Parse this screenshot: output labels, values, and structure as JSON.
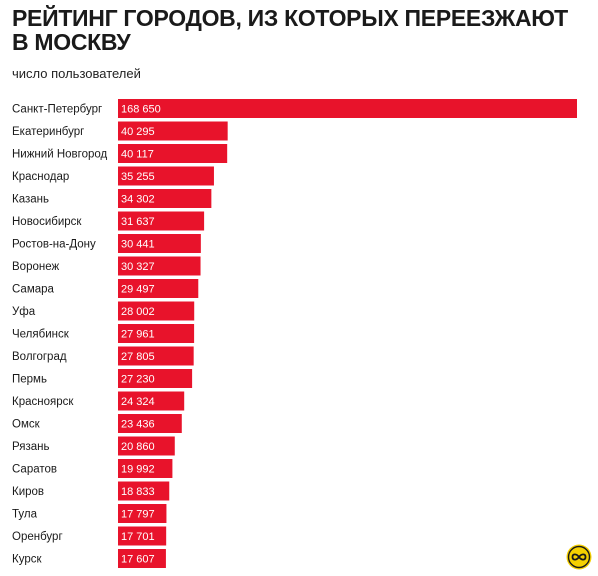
{
  "header": {
    "title": "РЕЙТИНГ ГОРОДОВ, ИЗ КОТОРЫХ ПЕРЕЕЗЖАЮТ В МОСКВУ",
    "subtitle": "число пользователей"
  },
  "colors": {
    "bar": "#e8132b",
    "text": "#1a1a1a",
    "logo_bg": "#f5d000"
  },
  "logo": {
    "icon": "infinity-logo-icon"
  },
  "chart_data": {
    "type": "bar",
    "orientation": "horizontal",
    "title": "РЕЙТИНГ ГОРОДОВ, ИЗ КОТОРЫХ ПЕРЕЕЗЖАЮТ В МОСКВУ",
    "subtitle": "число пользователей",
    "xlim": [
      0,
      168650
    ],
    "grid": false,
    "legend": "none",
    "categories": [
      "Санкт-Петербург",
      "Екатеринбург",
      "Нижний Новгород",
      "Краснодар",
      "Казань",
      "Новосибирск",
      "Ростов-на-Дону",
      "Воронеж",
      "Самара",
      "Уфа",
      "Челябинск",
      "Волгоград",
      "Пермь",
      "Красноярск",
      "Омск",
      "Рязань",
      "Саратов",
      "Киров",
      "Тула",
      "Оренбург",
      "Курск"
    ],
    "values": [
      168650,
      40295,
      40117,
      35255,
      34302,
      31637,
      30441,
      30327,
      29497,
      28002,
      27961,
      27805,
      27230,
      24324,
      23436,
      20860,
      19992,
      18833,
      17797,
      17701,
      17607
    ],
    "value_labels": [
      "168 650",
      "40 295",
      "40 117",
      "35 255",
      "34 302",
      "31 637",
      "30 441",
      "30 327",
      "29 497",
      "28 002",
      "27 961",
      "27 805",
      "27 230",
      "24 324",
      "23 436",
      "20 860",
      "19 992",
      "18 833",
      "17 797",
      "17 701",
      "17 607"
    ]
  }
}
